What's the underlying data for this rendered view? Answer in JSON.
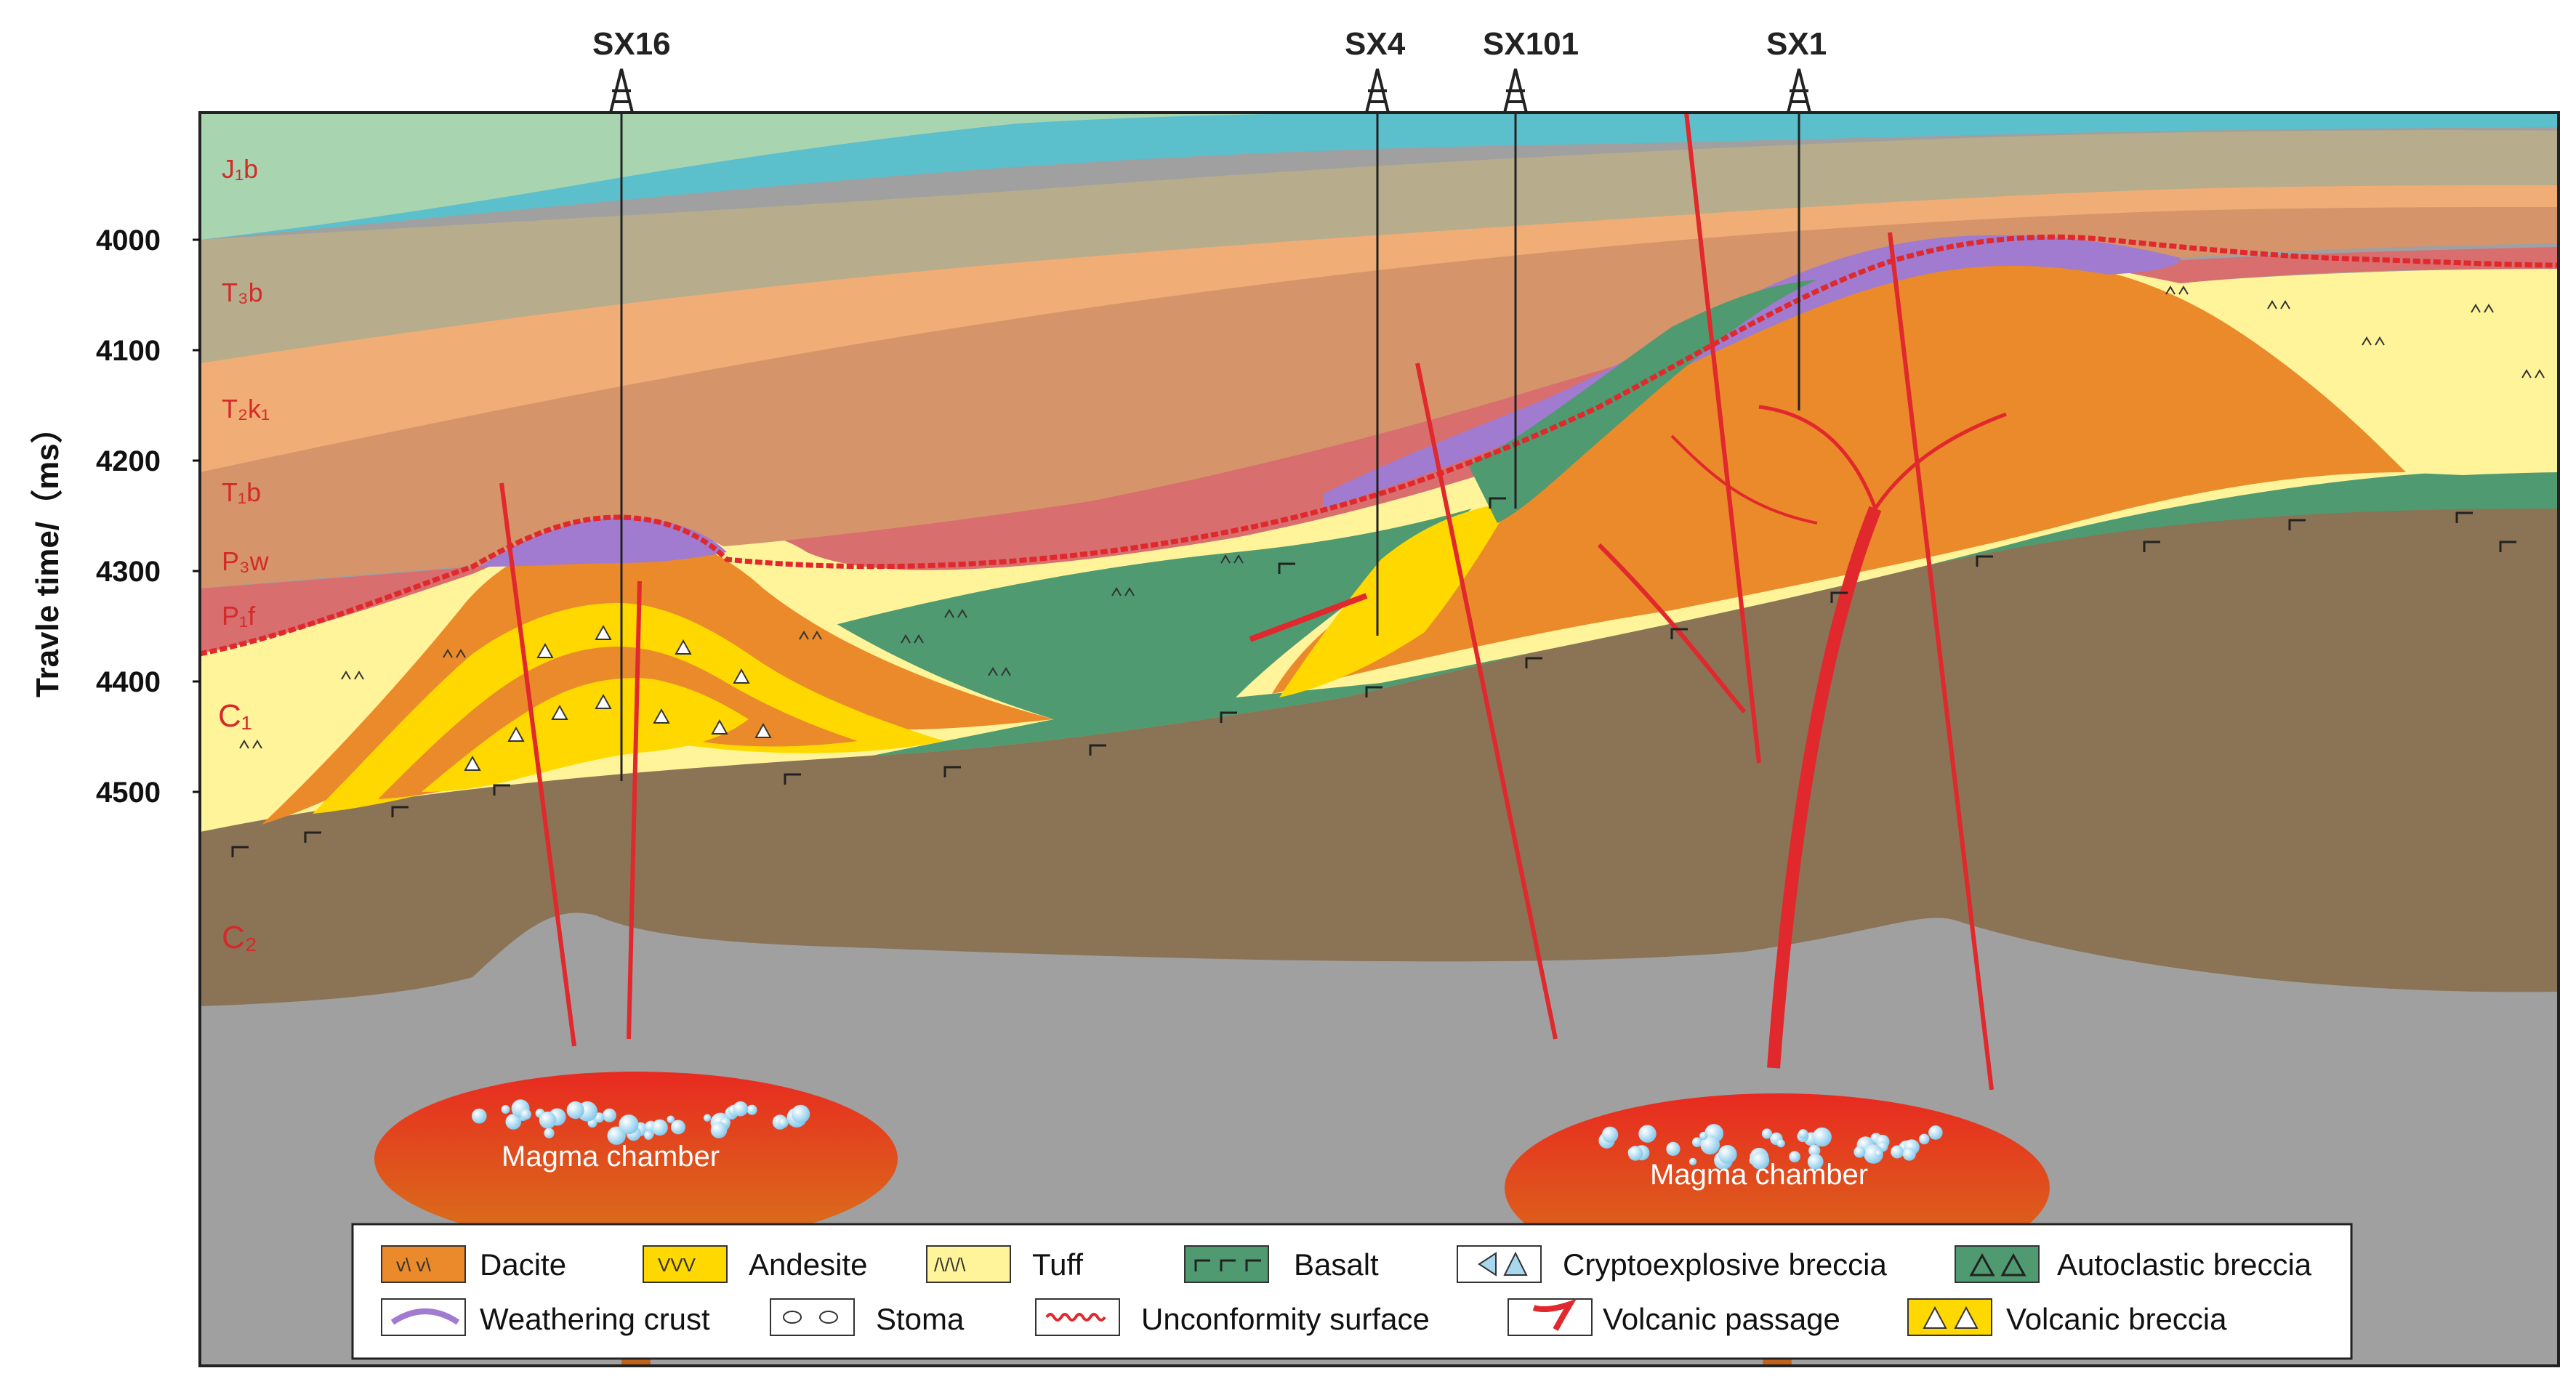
{
  "axis": {
    "title": "Travle time/（ms）",
    "ticks": [
      "4000",
      "4100",
      "4200",
      "4300",
      "4400",
      "4500"
    ]
  },
  "wells": [
    {
      "name": "SX16"
    },
    {
      "name": "SX4"
    },
    {
      "name": "SX101"
    },
    {
      "name": "SX1"
    }
  ],
  "strata": [
    {
      "label": "J₁b",
      "color": "#a8d5b0"
    },
    {
      "label": "T₃b",
      "color": "#5cbfcc"
    },
    {
      "label": "T₂k₁",
      "color": "#b7ad8c"
    },
    {
      "label": "T₁b",
      "color": "#f1ad76"
    },
    {
      "label": "P₃w",
      "color": "#d6946a"
    },
    {
      "label": "P₁f",
      "color": "#d86e6e"
    },
    {
      "label": "C₁",
      "color": "#fff49a"
    },
    {
      "label": "C₂",
      "color": "#8b7355"
    }
  ],
  "magma": {
    "left_label": "Magma chamber",
    "right_label": "Magma chamber"
  },
  "legend": {
    "dacite": "Dacite",
    "andesite": "Andesite",
    "tuff": "Tuff",
    "basalt": "Basalt",
    "cryptoexplosive": "Cryptoexplosive breccia",
    "autoclastic": "Autoclastic breccia",
    "weathering": "Weathering crust",
    "stoma": "Stoma",
    "unconformity": "Unconformity surface",
    "passage": "Volcanic passage",
    "volcanic_breccia": "Volcanic breccia",
    "andesite_symbol": "VVV",
    "tuff_symbol": "/\\/\\/\\"
  },
  "colors": {
    "dacite": "#ea8a2a",
    "andesite": "#ffd800",
    "tuff": "#fff49a",
    "basalt": "#4f9a70",
    "weathering": "#a07bd0",
    "magma": "#e8331f",
    "unconformity": "#e0282d",
    "basement": "#a0a0a0"
  }
}
